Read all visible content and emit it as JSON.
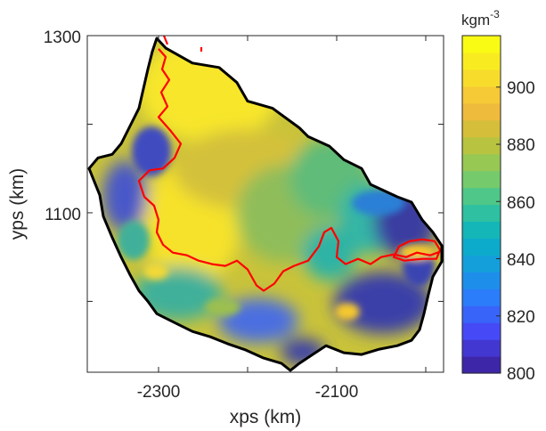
{
  "chart_data": {
    "type": "heatmap",
    "title": "",
    "xlabel": "xps (km)",
    "ylabel": "yps (km)",
    "xlim": [
      -2380,
      -1980
    ],
    "ylim": [
      920,
      1300
    ],
    "x_ticks": [
      -2300,
      -2100
    ],
    "x_tick_labels": [
      "-2300",
      "-2100"
    ],
    "y_ticks": [
      1100,
      1300
    ],
    "y_tick_labels": [
      "1100",
      "1300"
    ],
    "colorbar": {
      "unit_base": "kgm",
      "unit_exponent": "-3",
      "range": [
        800,
        918
      ],
      "ticks": [
        800,
        820,
        840,
        860,
        880,
        900
      ],
      "tick_labels": [
        "800",
        "820",
        "840",
        "860",
        "880",
        "900"
      ],
      "colormap": "parula",
      "levels": 20
    },
    "outline_color": "#000000",
    "contour_color": "#ff0000",
    "ice_shelf_outline": [
      [
        -2302,
        1297
      ],
      [
        -2292,
        1286
      ],
      [
        -2262,
        1269
      ],
      [
        -2232,
        1264
      ],
      [
        -2212,
        1247
      ],
      [
        -2200,
        1226
      ],
      [
        -2172,
        1218
      ],
      [
        -2142,
        1196
      ],
      [
        -2132,
        1186
      ],
      [
        -2108,
        1175
      ],
      [
        -2092,
        1160
      ],
      [
        -2072,
        1150
      ],
      [
        -2062,
        1132
      ],
      [
        -2032,
        1118
      ],
      [
        -2016,
        1112
      ],
      [
        -2004,
        1092
      ],
      [
        -1992,
        1078
      ],
      [
        -1982,
        1063
      ],
      [
        -1982,
        1045
      ],
      [
        -1992,
        1028
      ],
      [
        -1997,
        1008
      ],
      [
        -2002,
        986
      ],
      [
        -2007,
        968
      ],
      [
        -2016,
        956
      ],
      [
        -2032,
        950
      ],
      [
        -2052,
        946
      ],
      [
        -2072,
        940
      ],
      [
        -2092,
        942
      ],
      [
        -2112,
        950
      ],
      [
        -2127,
        940
      ],
      [
        -2142,
        930
      ],
      [
        -2152,
        922
      ],
      [
        -2162,
        930
      ],
      [
        -2182,
        936
      ],
      [
        -2202,
        945
      ],
      [
        -2222,
        952
      ],
      [
        -2242,
        960
      ],
      [
        -2262,
        966
      ],
      [
        -2282,
        976
      ],
      [
        -2302,
        986
      ],
      [
        -2312,
        1000
      ],
      [
        -2322,
        1012
      ],
      [
        -2332,
        1030
      ],
      [
        -2342,
        1050
      ],
      [
        -2352,
        1072
      ],
      [
        -2362,
        1096
      ],
      [
        -2366,
        1120
      ],
      [
        -2374,
        1140
      ],
      [
        -2378,
        1150
      ],
      [
        -2368,
        1162
      ],
      [
        -2352,
        1166
      ],
      [
        -2342,
        1178
      ],
      [
        -2332,
        1198
      ],
      [
        -2322,
        1218
      ],
      [
        -2317,
        1240
      ],
      [
        -2312,
        1262
      ],
      [
        -2307,
        1282
      ],
      [
        -2302,
        1297
      ]
    ],
    "grounding_line_contours": [
      [
        [
          -2300,
          1285
        ],
        [
          -2292,
          1276
        ],
        [
          -2296,
          1262
        ],
        [
          -2288,
          1250
        ],
        [
          -2297,
          1236
        ],
        [
          -2290,
          1220
        ],
        [
          -2300,
          1208
        ],
        [
          -2286,
          1192
        ],
        [
          -2275,
          1178
        ],
        [
          -2282,
          1162
        ],
        [
          -2295,
          1150
        ],
        [
          -2310,
          1148
        ],
        [
          -2322,
          1136
        ],
        [
          -2316,
          1118
        ],
        [
          -2305,
          1108
        ],
        [
          -2300,
          1092
        ],
        [
          -2302,
          1078
        ],
        [
          -2295,
          1064
        ],
        [
          -2284,
          1055
        ],
        [
          -2268,
          1052
        ],
        [
          -2255,
          1046
        ],
        [
          -2240,
          1042
        ],
        [
          -2225,
          1040
        ],
        [
          -2212,
          1046
        ],
        [
          -2200,
          1036
        ],
        [
          -2190,
          1018
        ],
        [
          -2182,
          1012
        ],
        [
          -2170,
          1020
        ],
        [
          -2160,
          1034
        ],
        [
          -2148,
          1040
        ],
        [
          -2132,
          1046
        ],
        [
          -2120,
          1062
        ],
        [
          -2114,
          1078
        ],
        [
          -2106,
          1083
        ],
        [
          -2098,
          1068
        ],
        [
          -2100,
          1050
        ],
        [
          -2090,
          1042
        ],
        [
          -2076,
          1048
        ],
        [
          -2062,
          1042
        ],
        [
          -2050,
          1050
        ],
        [
          -2036,
          1053
        ],
        [
          -2022,
          1050
        ],
        [
          -2010,
          1055
        ],
        [
          -1995,
          1052
        ],
        [
          -1984,
          1056
        ]
      ],
      [
        [
          -2018,
          1068
        ],
        [
          -2030,
          1062
        ],
        [
          -2036,
          1050
        ],
        [
          -2024,
          1046
        ],
        [
          -2004,
          1048
        ],
        [
          -1988,
          1048
        ],
        [
          -1984,
          1058
        ],
        [
          -1990,
          1068
        ],
        [
          -2004,
          1070
        ],
        [
          -2018,
          1068
        ]
      ],
      [
        [
          -2290,
          1290
        ],
        [
          -2294,
          1300
        ]
      ],
      [
        [
          -2252,
          1282
        ],
        [
          -2252,
          1287
        ]
      ]
    ]
  }
}
